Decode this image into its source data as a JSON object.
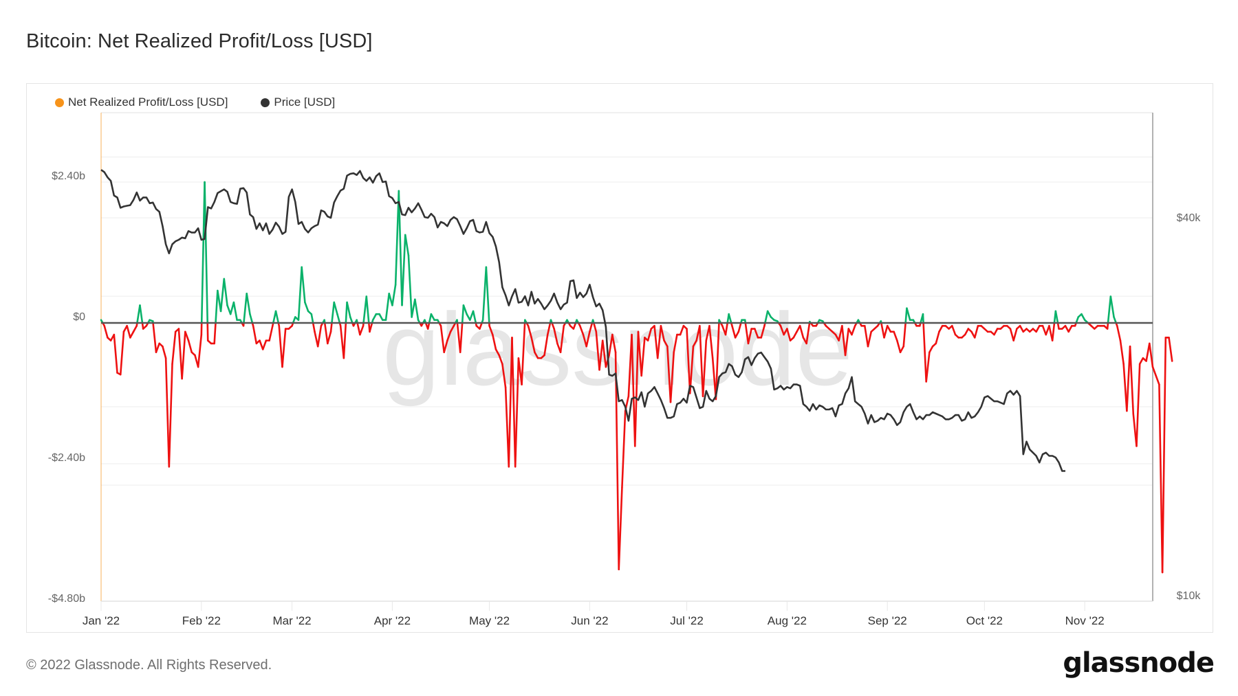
{
  "title": "Bitcoin: Net Realized Profit/Loss [USD]",
  "legend": [
    {
      "label": "Net Realized Profit/Loss [USD]",
      "color": "#f7931a"
    },
    {
      "label": "Price [USD]",
      "color": "#333333"
    }
  ],
  "footer": {
    "copyright": "© 2022 Glassnode. All Rights Reserved.",
    "logo": "glassnode"
  },
  "watermark": "glassnode",
  "colors": {
    "profit": "#0ab26a",
    "loss": "#ee1111",
    "price": "#333333",
    "zero_line": "#555555",
    "grid": "#f0f0f0",
    "left_axis": "#f7931a"
  },
  "chart_data": {
    "type": "line",
    "title": "Bitcoin: Net Realized Profit/Loss [USD]",
    "xlabel": "",
    "ylabel_left": "Net Realized Profit/Loss [USD]",
    "ylabel_right": "Price [USD]",
    "x_start": "2022-01-01",
    "x_end": "2022-11-22",
    "x_ticks": [
      "Jan '22",
      "Feb '22",
      "Mar '22",
      "Apr '22",
      "May '22",
      "Jun '22",
      "Jul '22",
      "Aug '22",
      "Sep '22",
      "Oct '22",
      "Nov '22"
    ],
    "y_left_ticks": [
      "$2.40b",
      "$0",
      "-$2.40b",
      "-$4.80b"
    ],
    "y_left_range_billions": [
      -4.8,
      3.5
    ],
    "y_right_ticks": [
      "$40k",
      "$10k"
    ],
    "y_right_scale": "log",
    "legend_position": "top-left",
    "grid": true,
    "series": [
      {
        "name": "Net Realized Profit/Loss [USD]",
        "unit": "billion USD",
        "values": [
          0.05,
          -0.05,
          -0.25,
          -0.3,
          -0.2,
          -0.85,
          -0.88,
          -0.15,
          -0.05,
          -0.25,
          -0.15,
          -0.05,
          0.3,
          -0.1,
          -0.05,
          0.05,
          0.03,
          -0.5,
          -0.35,
          -0.4,
          -0.6,
          -2.45,
          -0.7,
          -0.15,
          -0.1,
          -0.95,
          -0.15,
          -0.3,
          -0.5,
          -0.55,
          -0.75,
          -0.2,
          2.4,
          -0.3,
          -0.35,
          -0.35,
          0.55,
          0.2,
          0.75,
          0.3,
          0.15,
          0.35,
          0.05,
          0.05,
          -0.05,
          0.5,
          0.15,
          -0.05,
          -0.35,
          -0.3,
          -0.45,
          -0.3,
          -0.3,
          -0.05,
          0.2,
          -0.05,
          -0.75,
          -0.1,
          -0.1,
          -0.05,
          0.1,
          0.05,
          0.95,
          0.35,
          0.2,
          0.15,
          -0.15,
          -0.4,
          -0.05,
          0.05,
          -0.35,
          -0.15,
          0.35,
          0.15,
          -0.05,
          -0.6,
          0.35,
          0.1,
          -0.05,
          0.05,
          -0.2,
          -0.05,
          0.45,
          -0.15,
          0.05,
          0.15,
          0.15,
          0.05,
          0.05,
          0.5,
          0.3,
          0.65,
          2.25,
          0.3,
          1.5,
          1.15,
          0.1,
          0.4,
          0.05,
          -0.05,
          0.05,
          -0.1,
          0.15,
          0.05,
          0.05,
          -0.05,
          -0.5,
          -0.3,
          -0.15,
          -0.05,
          0.05,
          -0.5,
          0.3,
          0.15,
          0.05,
          0.2,
          -0.05,
          -0.1,
          0.05,
          0.95,
          -0.05,
          -0.2,
          -0.45,
          -0.55,
          -0.7,
          -1.1,
          -2.45,
          -0.25,
          -2.45,
          -0.6,
          -1.05,
          0.05,
          -0.05,
          -0.25,
          -0.5,
          -0.6,
          -0.6,
          -0.55,
          -0.2,
          0.05,
          -0.1,
          -0.35,
          -0.5,
          -0.05,
          0.05,
          -0.05,
          -0.1,
          0.05,
          -0.05,
          -0.2,
          -0.4,
          -0.15,
          0.05,
          -0.15,
          -0.8,
          -0.3,
          -0.75,
          -0.55,
          -0.2,
          -0.5,
          -4.2,
          -2.8,
          -1.5,
          -1.25,
          -0.2,
          -2.1,
          -0.15,
          -0.9,
          -0.25,
          -0.3,
          -0.1,
          -0.05,
          -0.6,
          -0.05,
          -0.3,
          -0.4,
          -1.35,
          -0.5,
          -0.2,
          -0.2,
          -0.05,
          -0.1,
          -1.2,
          -0.4,
          -0.3,
          -0.05,
          -1.25,
          -0.3,
          -0.05,
          -0.6,
          -1.3,
          0.05,
          -0.05,
          -0.2,
          0.15,
          -0.05,
          -0.25,
          -0.15,
          0.05,
          0.05,
          -0.35,
          -0.1,
          -0.1,
          -0.25,
          -0.25,
          -0.05,
          0.2,
          0.1,
          0.05,
          0.03,
          -0.05,
          -0.2,
          -0.1,
          -0.3,
          -0.25,
          -0.15,
          -0.05,
          -0.25,
          -0.35,
          0.02,
          -0.05,
          -0.05,
          0.05,
          0.03,
          -0.05,
          -0.1,
          -0.15,
          -0.2,
          -0.3,
          -0.05,
          -0.55,
          -0.1,
          -0.2,
          -0.05,
          0.05,
          -0.05,
          -0.05,
          -0.4,
          -0.15,
          -0.1,
          -0.05,
          0.03,
          -0.25,
          -0.05,
          -0.15,
          -0.15,
          -0.3,
          -0.5,
          -0.4,
          0.25,
          0.05,
          0.05,
          -0.05,
          -0.05,
          0.15,
          -1.0,
          -0.5,
          -0.4,
          -0.35,
          -0.15,
          -0.05,
          -0.05,
          -0.1,
          -0.05,
          -0.2,
          -0.25,
          -0.25,
          -0.2,
          -0.1,
          -0.15,
          -0.25,
          -0.05,
          -0.05,
          -0.1,
          -0.15,
          -0.15,
          -0.2,
          -0.1,
          -0.1,
          -0.05,
          -0.05,
          -0.1,
          -0.3,
          -0.1,
          -0.05,
          -0.15,
          -0.1,
          -0.15,
          -0.1,
          -0.15,
          -0.05,
          -0.05,
          -0.2,
          -0.05,
          -0.3,
          0.2,
          -0.1,
          -0.1,
          -0.05,
          -0.15,
          -0.05,
          -0.05,
          0.1,
          0.15,
          0.05,
          0.0,
          -0.05,
          -0.1,
          -0.05,
          -0.05,
          -0.05,
          -0.1,
          0.45,
          0.1,
          -0.05,
          -0.3,
          -0.7,
          -1.5,
          -0.4,
          -1.55,
          -2.1,
          -0.7,
          -0.6,
          -0.65,
          -0.35,
          -0.75,
          -0.9,
          -1.05,
          -4.25,
          -0.25,
          -0.25,
          -0.65
        ]
      },
      {
        "name": "Price [USD]",
        "unit": "USD",
        "values": [
          47700,
          47300,
          46400,
          45800,
          43400,
          43100,
          41500,
          41700,
          41800,
          41900,
          42700,
          43900,
          42600,
          43100,
          43100,
          42200,
          42300,
          41300,
          40900,
          38800,
          36300,
          35100,
          36300,
          36700,
          36900,
          37200,
          37100,
          38100,
          37900,
          37900,
          38500,
          36900,
          37000,
          41600,
          41400,
          42400,
          43800,
          44100,
          44400,
          44000,
          42400,
          42200,
          42100,
          44500,
          44600,
          43900,
          40500,
          40100,
          38400,
          39200,
          38200,
          39200,
          37700,
          38300,
          39300,
          38700,
          37700,
          38000,
          43200,
          44400,
          42400,
          39100,
          39400,
          38400,
          37900,
          38500,
          38800,
          39000,
          41100,
          40900,
          40200,
          40000,
          42300,
          43300,
          44200,
          44500,
          46700,
          47000,
          47100,
          46800,
          47500,
          46300,
          45800,
          46400,
          45500,
          46600,
          47100,
          45600,
          45700,
          43300,
          43000,
          42200,
          42400,
          40500,
          40400,
          41500,
          40800,
          41400,
          42200,
          41200,
          40100,
          40000,
          40600,
          40100,
          38600,
          39400,
          39200,
          38800,
          39700,
          40100,
          39800,
          38800,
          37700,
          38500,
          39500,
          39700,
          38100,
          37900,
          38000,
          39400,
          37800,
          37300,
          36000,
          34000,
          31000,
          30100,
          29000,
          30000,
          30800,
          29300,
          29400,
          30000,
          29000,
          30500,
          29200,
          29700,
          29200,
          28600,
          29000,
          29500,
          30300,
          29300,
          28600,
          29100,
          29300,
          31700,
          31800,
          29800,
          30400,
          29900,
          30300,
          31300,
          29900,
          28900,
          29200,
          28500,
          26800,
          22500,
          22400,
          22600,
          20400,
          20500,
          20000,
          19000,
          20600,
          20700,
          20500,
          21100,
          20000,
          21000,
          21200,
          21500,
          21000,
          20500,
          19900,
          19200,
          19200,
          19300,
          20200,
          20300,
          20600,
          20300,
          21600,
          21500,
          20700,
          19900,
          20000,
          21200,
          20600,
          20400,
          20800,
          22300,
          22600,
          22700,
          23400,
          23200,
          22500,
          22300,
          22700,
          23800,
          24000,
          23300,
          23900,
          24300,
          24400,
          24000,
          23600,
          23000,
          21300,
          21400,
          21600,
          21300,
          21500,
          21400,
          21700,
          21700,
          21600,
          20200,
          20000,
          19700,
          20200,
          19800,
          20100,
          20000,
          19800,
          19800,
          19900,
          19300,
          20100,
          20200,
          21000,
          21400,
          22300,
          20400,
          20200,
          20000,
          19500,
          18800,
          19400,
          18900,
          19000,
          19200,
          19100,
          19500,
          19400,
          19100,
          18700,
          18900,
          19600,
          20000,
          20200,
          19600,
          19100,
          19300,
          19100,
          19400,
          19400,
          19600,
          19500,
          19400,
          19300,
          19100,
          19100,
          19200,
          19400,
          19400,
          19000,
          19100,
          19600,
          19200,
          19300,
          19600,
          20000,
          20700,
          20800,
          20600,
          20400,
          20400,
          20300,
          20200,
          21000,
          21200,
          20900,
          21200,
          20800,
          16800,
          17600,
          17100,
          16900,
          16700,
          16300,
          16800,
          16900,
          16700,
          16700,
          16600,
          16300,
          15800,
          15800
        ],
        "y_range_log_usd": [
          10000,
          48500
        ]
      }
    ],
    "annotations": []
  }
}
